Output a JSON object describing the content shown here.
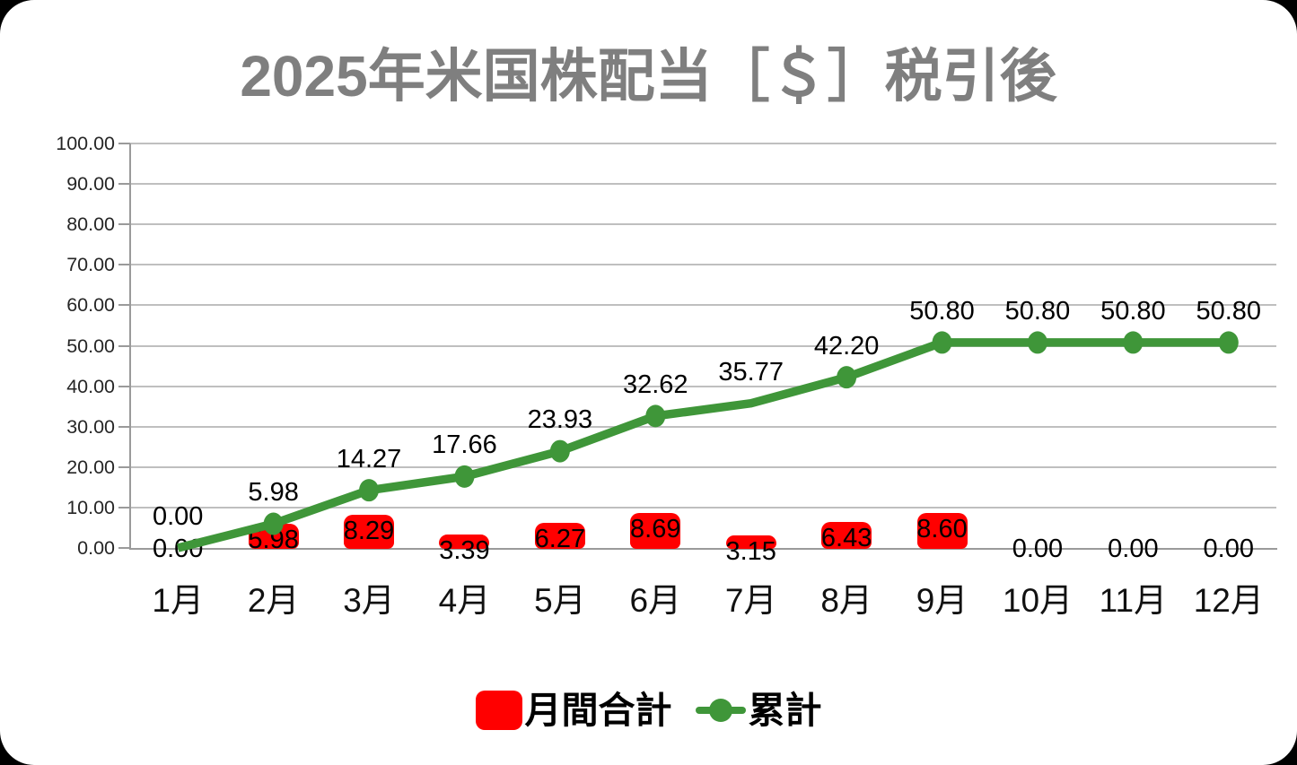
{
  "page": {
    "background": "#000000",
    "canvas_background": "#ffffff"
  },
  "title": {
    "text": "2025年米国株配当［＄］税引後",
    "color": "#7f7f7f"
  },
  "legend": {
    "items": [
      {
        "label": "月間合計",
        "type": "bar",
        "color": "#ff0000"
      },
      {
        "label": "累計",
        "type": "line",
        "color": "#3f9639"
      }
    ]
  },
  "colors": {
    "bar": "#ff0000",
    "line": "#3f9639",
    "grid": "#bfbfbf",
    "axis": "#9a9a9a",
    "tick_label": "#262626",
    "data_label": "#000000",
    "title": "#7f7f7f"
  },
  "chart_data": {
    "type": "combo-bar-line",
    "categories": [
      "1月",
      "2月",
      "3月",
      "4月",
      "5月",
      "6月",
      "7月",
      "8月",
      "9月",
      "10月",
      "11月",
      "12月"
    ],
    "series": [
      {
        "name": "月間合計",
        "type": "bar",
        "color": "#ff0000",
        "values": [
          0.0,
          5.98,
          8.29,
          3.39,
          6.27,
          8.69,
          3.15,
          6.43,
          8.6,
          0.0,
          0.0,
          0.0
        ]
      },
      {
        "name": "累計",
        "type": "line",
        "color": "#3f9639",
        "values": [
          0.0,
          5.98,
          14.27,
          17.66,
          23.93,
          32.62,
          35.77,
          42.2,
          50.8,
          50.8,
          50.8,
          50.8
        ],
        "marker_hidden_at": [
          0,
          6
        ]
      }
    ],
    "title": "2025年米国株配当［＄］税引後",
    "xlabel": "",
    "ylabel": "",
    "ylim": [
      0,
      100
    ],
    "ytick_step": 10,
    "ytick_format_decimals": 2,
    "data_label_format_decimals": 2,
    "grid": true,
    "legend_position": "bottom"
  }
}
